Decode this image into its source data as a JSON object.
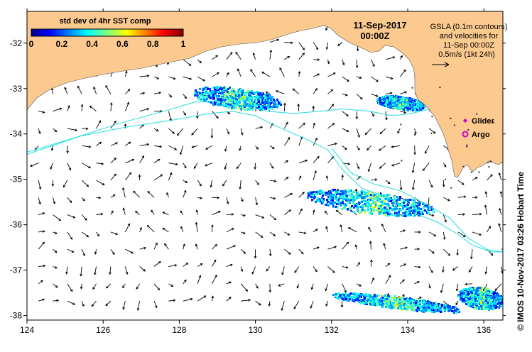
{
  "map": {
    "lon_min": 124,
    "lon_max": 136.5,
    "lat_min": -38.1,
    "lat_max": -31.3,
    "x_ticks": [
      124,
      126,
      128,
      130,
      132,
      134,
      136
    ],
    "x_tick_labels": [
      "124",
      "126",
      "128",
      "130",
      "132",
      "134",
      "136"
    ],
    "y_ticks": [
      -32,
      -33,
      -34,
      -35,
      -36,
      -37,
      -38
    ],
    "y_tick_labels": [
      "-32",
      "-33",
      "-34",
      "-35",
      "-36",
      "-37",
      "-38"
    ]
  },
  "colorbar": {
    "title": "std dev of 4hr SST comp",
    "tick_labels": [
      "0",
      "0.2",
      "0.4",
      "0.6",
      "0.8",
      "1"
    ],
    "min": 0,
    "max": 1
  },
  "date": {
    "line1": "11-Sep-2017",
    "line2": "00:00Z"
  },
  "legend": {
    "lines": [
      "GSLA (0.1m contours)",
      "and velocities for",
      "11-Sep 00:00Z",
      "0.5m/s (1kt 24h)"
    ],
    "glider_label": "Glider",
    "argo_label": "Argo"
  },
  "credit": "© IMOS 10-Nov-2017 03:26 Hobart Time",
  "colors": {
    "land": "#fcc98f",
    "contour": "#22dddd",
    "glider": "#cc00cc",
    "argo": "#cc00cc",
    "arrow": "#000000"
  },
  "contours": [
    [
      [
        124,
        -34.4
      ],
      [
        125.2,
        -34.1
      ],
      [
        126.5,
        -33.75
      ],
      [
        127.6,
        -33.5
      ],
      [
        128.4,
        -33.3
      ],
      [
        129.0,
        -33.28
      ],
      [
        129.7,
        -33.38
      ],
      [
        130.3,
        -33.5
      ],
      [
        131.0,
        -33.55
      ],
      [
        131.7,
        -33.5
      ],
      [
        132.3,
        -33.45
      ],
      [
        133.0,
        -33.5
      ],
      [
        133.6,
        -33.6
      ],
      [
        134.1,
        -33.55
      ],
      [
        134.6,
        -33.45
      ]
    ],
    [
      [
        124,
        -34.45
      ],
      [
        125.4,
        -34.05
      ],
      [
        126.6,
        -33.85
      ],
      [
        127.8,
        -33.7
      ],
      [
        128.8,
        -33.55
      ],
      [
        129.4,
        -33.5
      ],
      [
        130.0,
        -33.6
      ],
      [
        130.6,
        -33.85
      ],
      [
        131.3,
        -34.1
      ],
      [
        131.9,
        -34.35
      ],
      [
        132.3,
        -34.8
      ],
      [
        132.8,
        -35.2
      ],
      [
        133.5,
        -35.4
      ],
      [
        134.2,
        -35.75
      ],
      [
        134.8,
        -35.95
      ],
      [
        135.3,
        -36.2
      ],
      [
        135.7,
        -36.45
      ],
      [
        136.2,
        -36.6
      ],
      [
        136.5,
        -36.6
      ]
    ],
    [
      [
        132.0,
        -34.3
      ],
      [
        132.5,
        -34.85
      ],
      [
        133.1,
        -35.1
      ],
      [
        133.8,
        -35.25
      ],
      [
        134.5,
        -35.55
      ],
      [
        135.1,
        -35.85
      ],
      [
        135.6,
        -36.3
      ],
      [
        136.1,
        -36.55
      ],
      [
        136.5,
        -36.6
      ]
    ]
  ],
  "sst_patches": [
    {
      "lon": 129.5,
      "lat": -33.2,
      "w": 2.3,
      "h": 0.48,
      "seed": 3
    },
    {
      "lon": 133.8,
      "lat": -33.3,
      "w": 1.3,
      "h": 0.3,
      "seed": 7
    },
    {
      "lon": 133.0,
      "lat": -35.5,
      "w": 3.4,
      "h": 0.5,
      "seed": 11
    },
    {
      "lon": 133.7,
      "lat": -37.7,
      "w": 3.4,
      "h": 0.28,
      "seed": 19
    },
    {
      "lon": 135.9,
      "lat": -37.6,
      "w": 1.2,
      "h": 0.5,
      "seed": 23
    }
  ],
  "markers": {
    "glider": {
      "lon": 135.55,
      "lat": -33.6
    },
    "argo": {
      "lon": 135.55,
      "lat": -33.88
    }
  }
}
